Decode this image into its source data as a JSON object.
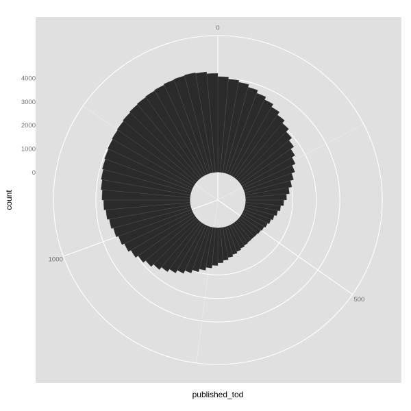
{
  "chart_data": {
    "type": "bar",
    "coord": "polar",
    "xlabel": "published_tod",
    "ylabel": "count",
    "x_ticks": [
      0,
      500,
      1000
    ],
    "x_range": [
      0,
      1440
    ],
    "y_ticks": [
      0,
      1000,
      2000,
      3000,
      4000
    ],
    "y_range": [
      -1180,
      5800
    ],
    "binwidth": 20,
    "colors": {
      "panel": "#e0e0e0",
      "bar": "#2b2b2b",
      "grid": "#ffffff"
    },
    "x": [
      10,
      30,
      50,
      70,
      90,
      110,
      130,
      150,
      170,
      190,
      210,
      230,
      250,
      270,
      290,
      310,
      330,
      350,
      370,
      390,
      410,
      430,
      450,
      470,
      490,
      510,
      530,
      550,
      570,
      590,
      610,
      630,
      650,
      670,
      690,
      710,
      730,
      750,
      770,
      790,
      810,
      830,
      850,
      870,
      890,
      910,
      930,
      950,
      970,
      990,
      1010,
      1030,
      1050,
      1070,
      1090,
      1110,
      1130,
      1150,
      1170,
      1190,
      1210,
      1230,
      1250,
      1270,
      1290,
      1310,
      1330,
      1350,
      1370,
      1390,
      1410,
      1430
    ],
    "values": [
      4060,
      3980,
      3900,
      3780,
      3650,
      3520,
      3380,
      3230,
      3080,
      2920,
      2760,
      2600,
      2450,
      2300,
      2150,
      2010,
      1870,
      1740,
      1620,
      1500,
      1400,
      1300,
      1220,
      1150,
      1090,
      1050,
      1020,
      1010,
      1020,
      1050,
      1090,
      1150,
      1220,
      1300,
      1390,
      1490,
      1600,
      1720,
      1850,
      1980,
      2120,
      2260,
      2400,
      2540,
      2680,
      2820,
      2950,
      3080,
      3200,
      3310,
      3410,
      3500,
      3590,
      3670,
      3740,
      3800,
      3850,
      3900,
      3940,
      3980,
      4010,
      4040,
      4080,
      4120,
      4150,
      4180,
      4210,
      4250,
      4280,
      4310,
      4280,
      4200
    ]
  }
}
